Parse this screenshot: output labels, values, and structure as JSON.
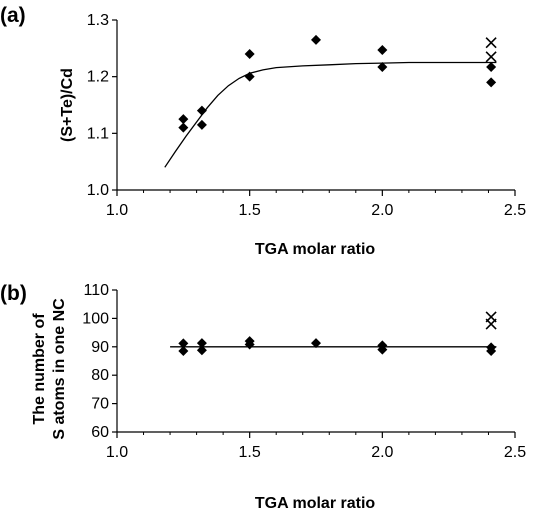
{
  "chart_data": [
    {
      "panel": "(a)",
      "type": "scatter",
      "xlabel": "TGA molar ratio",
      "ylabel": "(S+Te)/Cd",
      "xlim": [
        1.0,
        2.5
      ],
      "ylim": [
        1.0,
        1.3
      ],
      "xticks": [
        "1.0",
        "1.5",
        "2.0",
        "2.5"
      ],
      "yticks": [
        "1.0",
        "1.1",
        "1.2",
        "1.3"
      ],
      "xminor": [
        1.1,
        1.2,
        1.3,
        1.4,
        1.6,
        1.7,
        1.8,
        1.9,
        2.1,
        2.2,
        2.3,
        2.4
      ],
      "series": [
        {
          "marker": "diamond",
          "points": [
            [
              1.25,
              1.11
            ],
            [
              1.25,
              1.125
            ],
            [
              1.32,
              1.115
            ],
            [
              1.32,
              1.14
            ],
            [
              1.5,
              1.2
            ],
            [
              1.5,
              1.24
            ],
            [
              1.75,
              1.265
            ],
            [
              2.0,
              1.217
            ],
            [
              2.0,
              1.247
            ],
            [
              2.41,
              1.19
            ],
            [
              2.41,
              1.217
            ]
          ]
        },
        {
          "marker": "cross",
          "points": [
            [
              2.41,
              1.235
            ],
            [
              2.41,
              1.26
            ]
          ]
        },
        {
          "marker": "curve",
          "points": [
            [
              1.18,
              1.04
            ],
            [
              1.22,
              1.068
            ],
            [
              1.26,
              1.095
            ],
            [
              1.3,
              1.12
            ],
            [
              1.34,
              1.145
            ],
            [
              1.38,
              1.167
            ],
            [
              1.42,
              1.184
            ],
            [
              1.46,
              1.197
            ],
            [
              1.5,
              1.206
            ],
            [
              1.55,
              1.212
            ],
            [
              1.6,
              1.216
            ],
            [
              1.7,
              1.219
            ],
            [
              1.8,
              1.221
            ],
            [
              1.9,
              1.223
            ],
            [
              2.0,
              1.224
            ],
            [
              2.1,
              1.225
            ],
            [
              2.2,
              1.225
            ],
            [
              2.3,
              1.225
            ],
            [
              2.43,
              1.225
            ]
          ]
        }
      ]
    },
    {
      "panel": "(b)",
      "type": "scatter",
      "xlabel": "TGA molar ratio",
      "ylabel": [
        "The number of",
        "S atoms in one NC"
      ],
      "xlim": [
        1.0,
        2.5
      ],
      "ylim": [
        60,
        110
      ],
      "xticks": [
        "1.0",
        "1.5",
        "2.0",
        "2.5"
      ],
      "yticks": [
        "60",
        "70",
        "80",
        "90",
        "100",
        "110"
      ],
      "xminor": [
        1.1,
        1.2,
        1.3,
        1.4,
        1.6,
        1.7,
        1.8,
        1.9,
        2.1,
        2.2,
        2.3,
        2.4
      ],
      "series": [
        {
          "marker": "diamond",
          "points": [
            [
              1.25,
              88.5
            ],
            [
              1.25,
              91.2
            ],
            [
              1.32,
              88.8
            ],
            [
              1.32,
              91.3
            ],
            [
              1.5,
              90.8
            ],
            [
              1.5,
              92.0
            ],
            [
              1.75,
              91.3
            ],
            [
              2.0,
              89.0
            ],
            [
              2.0,
              90.5
            ],
            [
              2.41,
              88.5
            ],
            [
              2.41,
              89.8
            ]
          ]
        },
        {
          "marker": "cross",
          "points": [
            [
              2.41,
              98
            ],
            [
              2.41,
              100.5
            ]
          ]
        },
        {
          "marker": "line",
          "points": [
            [
              1.2,
              90
            ],
            [
              2.43,
              90
            ]
          ]
        }
      ]
    }
  ]
}
